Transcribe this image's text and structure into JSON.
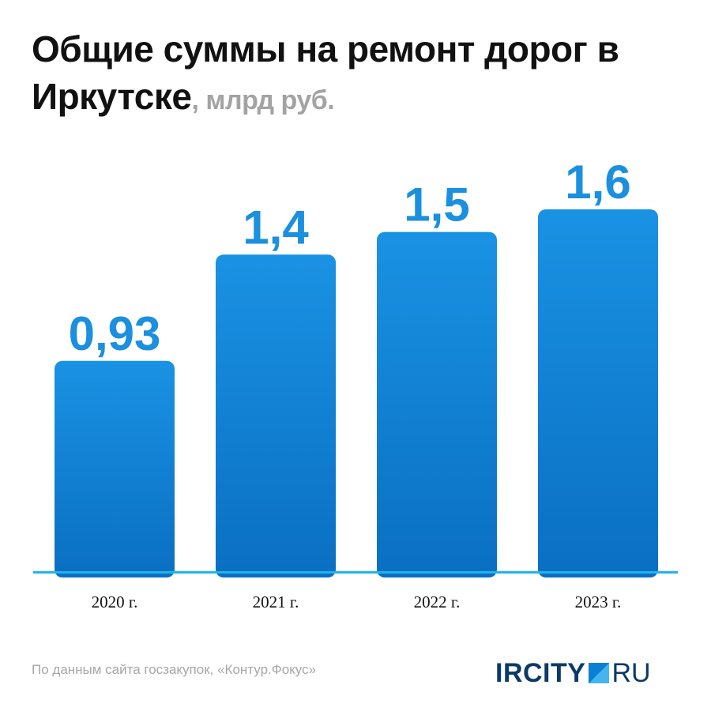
{
  "header": {
    "title_main": "Общие суммы на ремонт дорог в Иркутске",
    "title_unit": ", млрд руб."
  },
  "chart_data": {
    "type": "bar",
    "categories": [
      "2020 г.",
      "2021 г.",
      "2022 г.",
      "2023 г."
    ],
    "values": [
      0.93,
      1.4,
      1.5,
      1.6
    ],
    "value_labels": [
      "0,93",
      "1,4",
      "1,5",
      "1,6"
    ],
    "title": "Общие суммы на ремонт дорог в Иркутске",
    "ylabel": "млрд руб.",
    "grid": false,
    "legend": "none",
    "colors": {
      "bar_top": "#1a92e3",
      "bar_bottom": "#0a6fc2",
      "label": "#1a90df",
      "baseline": "#21b4ea"
    }
  },
  "footer": {
    "source": "По данным сайта госзакупок, «Контур.Фокус»",
    "logo_left": "IRCITY",
    "logo_right": "RU"
  }
}
